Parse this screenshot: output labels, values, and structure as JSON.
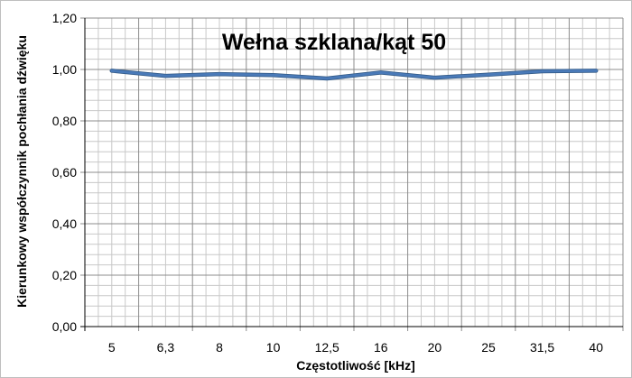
{
  "chart_data": {
    "type": "line",
    "title": "Wełna szklana/kąt 50",
    "xlabel": "Częstotliwość [kHz]",
    "ylabel": "Kierunkowy współczynnik pochłania dźwięku",
    "categories": [
      "5",
      "6,3",
      "8",
      "10",
      "12,5",
      "16",
      "20",
      "25",
      "31,5",
      "40"
    ],
    "y_ticks": [
      "0,00",
      "0,20",
      "0,40",
      "0,60",
      "0,80",
      "1,00",
      "1,20"
    ],
    "ylim": [
      0,
      1.2
    ],
    "grid": true,
    "legend": "none",
    "series": [
      {
        "values": [
          0.995,
          0.975,
          0.982,
          0.978,
          0.965,
          0.988,
          0.968,
          0.98,
          0.993,
          0.995
        ]
      }
    ],
    "colors": {
      "series": "#4a7ab8",
      "series_edge": "#2f5682",
      "major_grid": "#8c8c8c",
      "minor_grid": "#c8c8c8",
      "axis": "#000000"
    }
  }
}
